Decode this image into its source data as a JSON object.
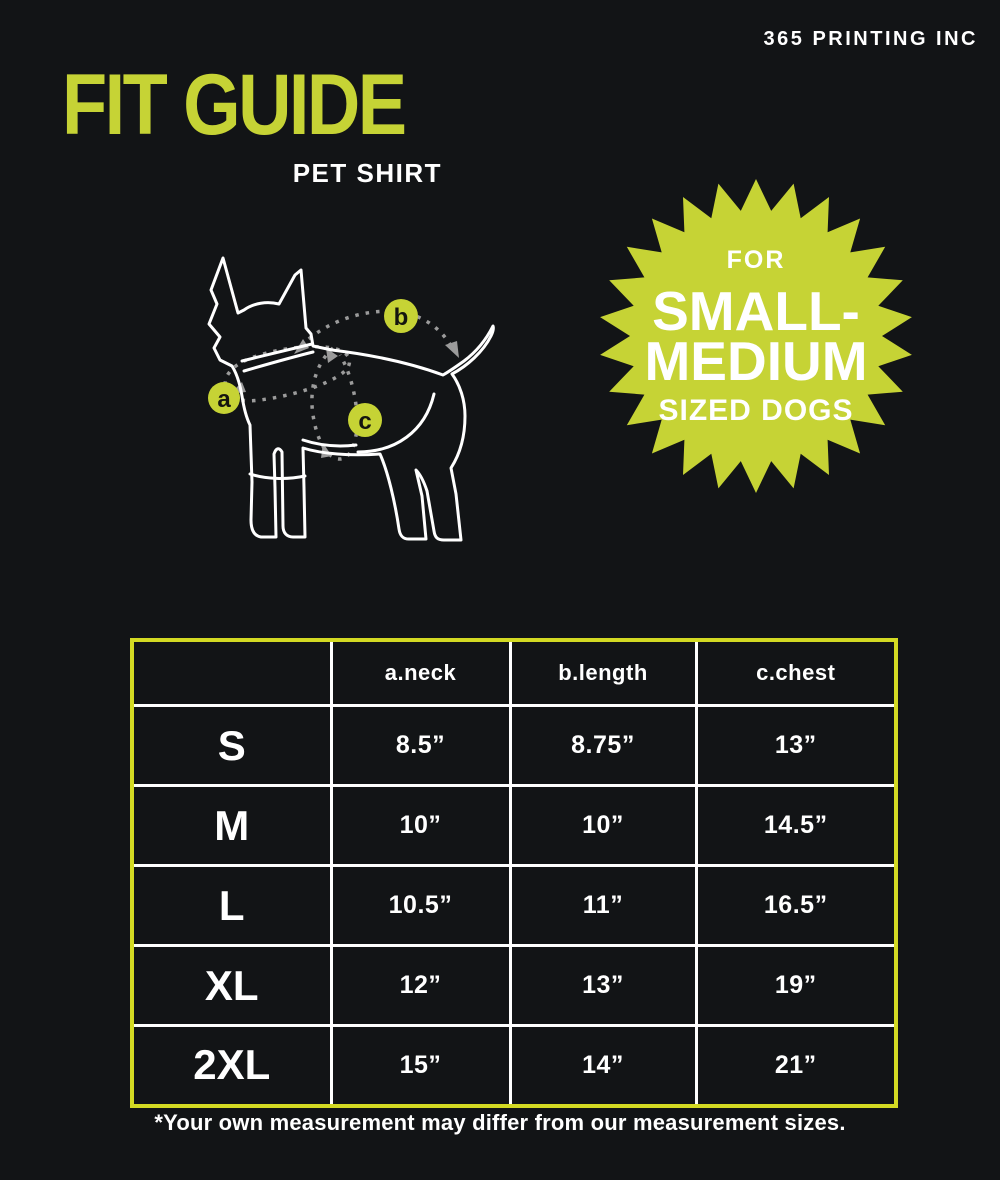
{
  "colors": {
    "background": "#121416",
    "accent_lime": "#c6d335",
    "table_border_lime": "#d3da23",
    "text_white": "#ffffff",
    "dotted_gray": "#9b9b9b",
    "marker_letter_dark": "#14150f"
  },
  "header": {
    "brand": "365 PRINTING INC",
    "title": "FIT GUIDE",
    "subtitle": "PET SHIRT"
  },
  "badge": {
    "line1": "FOR",
    "line2": "SMALL-",
    "line3": "MEDIUM",
    "line4": "SIZED DOGS"
  },
  "diagram": {
    "markers": [
      {
        "label": "a"
      },
      {
        "label": "b"
      },
      {
        "label": "c"
      }
    ]
  },
  "size_table": {
    "columns": [
      "a.neck",
      "b.length",
      "c.chest"
    ],
    "rows": [
      {
        "size": "S",
        "neck": "8.5”",
        "length": "8.75”",
        "chest": "13”"
      },
      {
        "size": "M",
        "neck": "10”",
        "length": "10”",
        "chest": "14.5”"
      },
      {
        "size": "L",
        "neck": "10.5”",
        "length": "11”",
        "chest": "16.5”"
      },
      {
        "size": "XL",
        "neck": "12”",
        "length": "13”",
        "chest": "19”"
      },
      {
        "size": "2XL",
        "neck": "15”",
        "length": "14”",
        "chest": "21”"
      }
    ]
  },
  "footer": {
    "note": "*Your own measurement may differ from our measurement sizes."
  }
}
